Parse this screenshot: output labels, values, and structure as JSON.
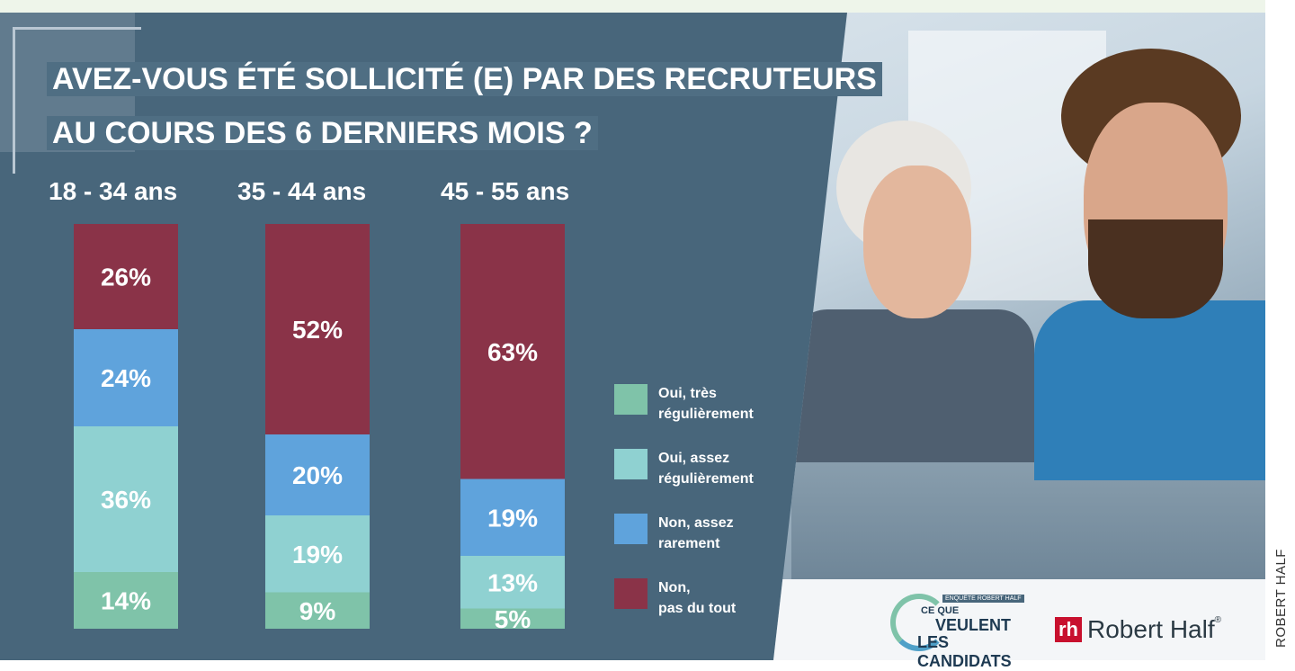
{
  "title": {
    "line1": "AVEZ-VOUS ÉTÉ SOLLICITÉ (E) PAR DES RECRUTEURS",
    "line2": "AU COURS DES 6 DERNIERS MOIS ?"
  },
  "colors": {
    "background": "#48667b",
    "oui_tres": "#7fc3a9",
    "oui_assez": "#8fd1d1",
    "non_assez": "#5fa3dc",
    "non_pas": "#8a3348"
  },
  "chart_data": {
    "type": "bar",
    "stacked": true,
    "orientation": "vertical",
    "categories": [
      "18 - 34 ans",
      "35 - 44 ans",
      "45 - 55 ans"
    ],
    "series": [
      {
        "name": "Oui, très régulièrement",
        "values": [
          14,
          9,
          5
        ],
        "labels": [
          "14%",
          "9%",
          "5%"
        ]
      },
      {
        "name": "Oui, assez régulièrement",
        "values": [
          36,
          19,
          13
        ],
        "labels": [
          "36%",
          "19%",
          "13%"
        ]
      },
      {
        "name": "Non, assez rarement",
        "values": [
          24,
          20,
          19
        ],
        "labels": [
          "24%",
          "20%",
          "19%"
        ]
      },
      {
        "name": "Non, pas du tout",
        "values": [
          26,
          52,
          63
        ],
        "labels": [
          "26%",
          "52%",
          "63%"
        ]
      }
    ],
    "ylim": [
      0,
      100
    ],
    "grid": false,
    "legend_position": "right"
  },
  "legend": [
    {
      "line1": "Oui, très",
      "line2": "régulièrement"
    },
    {
      "line1": "Oui, assez",
      "line2": "régulièrement"
    },
    {
      "line1": "Non, assez",
      "line2": "rarement"
    },
    {
      "line1": "Non,",
      "line2": "pas du tout"
    }
  ],
  "branding": {
    "enquete": "ENQUÊTE ROBERT HALF",
    "ce_que": "CE QUE",
    "veulent": "VEULENT",
    "les_candidats": "LES CANDIDATS",
    "rh_mark": "rh",
    "company": "Robert Half",
    "registered": "®",
    "photo_credit": "ROBERT HALF"
  }
}
